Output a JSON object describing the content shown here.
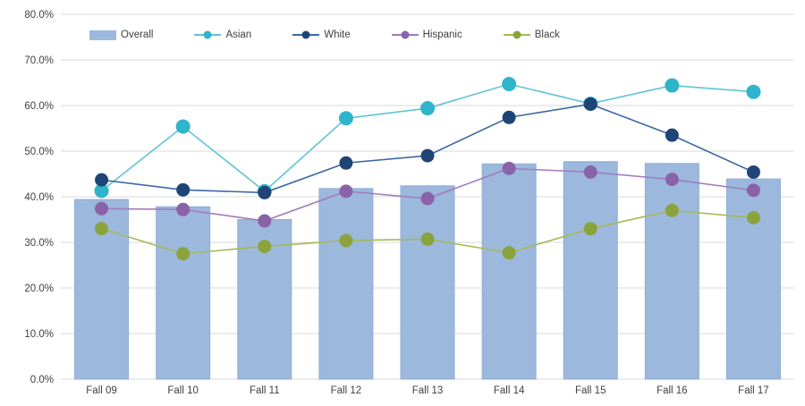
{
  "chart_data": {
    "type": "bar",
    "combo": "bar+line",
    "title": "",
    "xlabel": "",
    "ylabel": "",
    "categories": [
      "Fall 09",
      "Fall 10",
      "Fall 11",
      "Fall 12",
      "Fall 13",
      "Fall 14",
      "Fall 15",
      "Fall 16",
      "Fall 17"
    ],
    "ylim": [
      0,
      80
    ],
    "ytick_step": 10,
    "yticks": [
      "0.0%",
      "10.0%",
      "20.0%",
      "30.0%",
      "40.0%",
      "50.0%",
      "60.0%",
      "70.0%",
      "80.0%"
    ],
    "grid": "horizontal",
    "legend_position": "top-left-inside",
    "series": [
      {
        "name": "Overall",
        "style": "bar",
        "color": "#9CB8DC",
        "edge_color": "#8FAED8",
        "values": [
          39.4,
          37.8,
          35.0,
          41.8,
          42.4,
          47.2,
          47.7,
          47.3,
          43.9
        ]
      },
      {
        "name": "Asian",
        "style": "line",
        "line_color": "#5FC3D5",
        "marker_color": "#2FB4CC",
        "values": [
          41.3,
          55.4,
          41.2,
          57.2,
          59.4,
          64.7,
          60.4,
          64.4,
          63.0
        ]
      },
      {
        "name": "White",
        "style": "line",
        "line_color": "#3C68A6",
        "marker_color": "#1F4577",
        "values": [
          43.7,
          41.5,
          40.9,
          47.4,
          49.0,
          57.4,
          60.3,
          53.5,
          45.4
        ]
      },
      {
        "name": "Hispanic",
        "style": "line",
        "line_color": "#A07BBE",
        "marker_color": "#8A62A8",
        "values": [
          37.4,
          37.2,
          34.7,
          41.2,
          39.6,
          46.2,
          45.4,
          43.8,
          41.4
        ]
      },
      {
        "name": "Black",
        "style": "line",
        "line_color": "#A3BA55",
        "marker_color": "#8AA33C",
        "values": [
          33.0,
          27.5,
          29.1,
          30.4,
          30.7,
          27.7,
          33.0,
          37.0,
          35.4
        ]
      }
    ],
    "colors": {
      "background": "#FFFFFF",
      "gridline": "#D9D9D9",
      "tick_text": "#404040"
    }
  }
}
